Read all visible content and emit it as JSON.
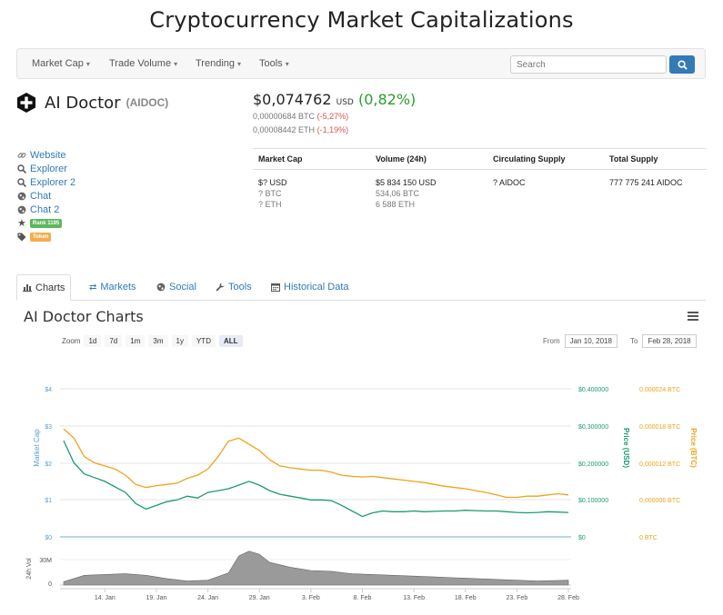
{
  "page": {
    "title": "Cryptocurrency Market Capitalizations"
  },
  "nav": {
    "items": [
      "Market Cap",
      "Trade Volume",
      "Trending",
      "Tools"
    ],
    "search_placeholder": "Search"
  },
  "coin": {
    "name": "AI Doctor",
    "symbol": "(AIDOC)",
    "price_usd": "$0,074762",
    "usd_label": "USD",
    "change_usd": "(0,82%)",
    "price_btc": "0,00000684 BTC",
    "change_btc": "(-5,27%)",
    "price_eth": "0,00008442 ETH",
    "change_eth": "(-1,19%)"
  },
  "links": {
    "website": "Website",
    "explorer": "Explorer",
    "explorer2": "Explorer 2",
    "chat": "Chat",
    "chat2": "Chat 2",
    "rank": "Rank 1195",
    "token": "Token"
  },
  "stats": {
    "headers": [
      "Market Cap",
      "Volume (24h)",
      "Circulating Supply",
      "Total Supply"
    ],
    "market_cap": [
      "$? USD",
      "? BTC",
      "? ETH"
    ],
    "volume": [
      "$5 834 150 USD",
      "534,06 BTC",
      "6 588 ETH"
    ],
    "circulating": "? AIDOC",
    "total": "777 775 241 AIDOC"
  },
  "tabs": [
    "Charts",
    "Markets",
    "Social",
    "Tools",
    "Historical Data"
  ],
  "charts": {
    "title": "AI Doctor Charts",
    "zoom_label": "Zoom",
    "zoom_buttons": [
      "1d",
      "7d",
      "1m",
      "3m",
      "1y",
      "YTD",
      "ALL"
    ],
    "from_label": "From",
    "from_date": "Jan 10, 2018",
    "to_label": "To",
    "to_date": "Feb 28, 2018"
  },
  "chart_data": {
    "type": "line",
    "x_ticks": [
      "14. Jan",
      "19. Jan",
      "24. Jan",
      "29. Jan",
      "3. Feb",
      "8. Feb",
      "13. Feb",
      "18. Feb",
      "23. Feb",
      "28. Feb"
    ],
    "left_axis": {
      "label": "Market Cap",
      "ticks": [
        "$4",
        "$3",
        "$2",
        "$1",
        "$0"
      ]
    },
    "usd_axis": {
      "label": "Price (USD)",
      "ticks": [
        "$0,400000",
        "$0,300000",
        "$0,200000",
        "$0,100000",
        "$0"
      ],
      "ylim": [
        0,
        0.4
      ]
    },
    "btc_axis": {
      "label": "Price (BTC)",
      "ticks": [
        "0,000024 BTC",
        "0,000018 BTC",
        "0,000012 BTC",
        "0,000006 BTC",
        "0 BTC"
      ],
      "ylim": [
        0,
        2.4e-05
      ]
    },
    "volume_axis": {
      "label": "24h Vol",
      "ticks": [
        "30M",
        "0"
      ]
    },
    "series": [
      {
        "name": "Price (USD)",
        "color": "#1a9a73",
        "x": [
          "Jan 10",
          "Jan 11",
          "Jan 12",
          "Jan 13",
          "Jan 14",
          "Jan 15",
          "Jan 16",
          "Jan 17",
          "Jan 18",
          "Jan 19",
          "Jan 20",
          "Jan 21",
          "Jan 22",
          "Jan 23",
          "Jan 24",
          "Jan 25",
          "Jan 26",
          "Jan 27",
          "Jan 28",
          "Jan 29",
          "Jan 30",
          "Jan 31",
          "Feb 1",
          "Feb 2",
          "Feb 3",
          "Feb 4",
          "Feb 5",
          "Feb 6",
          "Feb 7",
          "Feb 8",
          "Feb 9",
          "Feb 10",
          "Feb 11",
          "Feb 12",
          "Feb 13",
          "Feb 14",
          "Feb 15",
          "Feb 16",
          "Feb 17",
          "Feb 18",
          "Feb 19",
          "Feb 20",
          "Feb 21",
          "Feb 22",
          "Feb 23",
          "Feb 24",
          "Feb 25",
          "Feb 26",
          "Feb 27",
          "Feb 28"
        ],
        "values": [
          0.26,
          0.2,
          0.17,
          0.16,
          0.15,
          0.135,
          0.12,
          0.09,
          0.075,
          0.085,
          0.095,
          0.1,
          0.11,
          0.105,
          0.12,
          0.125,
          0.13,
          0.14,
          0.15,
          0.14,
          0.125,
          0.115,
          0.11,
          0.105,
          0.1,
          0.1,
          0.098,
          0.085,
          0.07,
          0.055,
          0.065,
          0.07,
          0.068,
          0.068,
          0.07,
          0.068,
          0.069,
          0.07,
          0.07,
          0.072,
          0.071,
          0.07,
          0.07,
          0.068,
          0.066,
          0.065,
          0.066,
          0.068,
          0.067,
          0.066
        ]
      },
      {
        "name": "Price (BTC)",
        "color": "#f0a318",
        "x": [
          "Jan 10",
          "Jan 11",
          "Jan 12",
          "Jan 13",
          "Jan 14",
          "Jan 15",
          "Jan 16",
          "Jan 17",
          "Jan 18",
          "Jan 19",
          "Jan 20",
          "Jan 21",
          "Jan 22",
          "Jan 23",
          "Jan 24",
          "Jan 25",
          "Jan 26",
          "Jan 27",
          "Jan 28",
          "Jan 29",
          "Jan 30",
          "Jan 31",
          "Feb 1",
          "Feb 2",
          "Feb 3",
          "Feb 4",
          "Feb 5",
          "Feb 6",
          "Feb 7",
          "Feb 8",
          "Feb 9",
          "Feb 10",
          "Feb 11",
          "Feb 12",
          "Feb 13",
          "Feb 14",
          "Feb 15",
          "Feb 16",
          "Feb 17",
          "Feb 18",
          "Feb 19",
          "Feb 20",
          "Feb 21",
          "Feb 22",
          "Feb 23",
          "Feb 24",
          "Feb 25",
          "Feb 26",
          "Feb 27",
          "Feb 28"
        ],
        "values": [
          1.75e-05,
          1.6e-05,
          1.3e-05,
          1.2e-05,
          1.15e-05,
          1.1e-05,
          1e-05,
          8.5e-06,
          8e-06,
          8.3e-06,
          8.5e-06,
          8.7e-06,
          9.5e-06,
          1e-05,
          1.1e-05,
          1.3e-05,
          1.55e-05,
          1.6e-05,
          1.5e-05,
          1.4e-05,
          1.25e-05,
          1.15e-05,
          1.12e-05,
          1.1e-05,
          1.08e-05,
          1.08e-05,
          1.05e-05,
          1e-05,
          9.8e-06,
          9.7e-06,
          9.8e-06,
          9.6e-06,
          9.4e-06,
          9.2e-06,
          9e-06,
          8.8e-06,
          8.5e-06,
          8.2e-06,
          8e-06,
          7.8e-06,
          7.5e-06,
          7.2e-06,
          6.8e-06,
          6.4e-06,
          6.4e-06,
          6.6e-06,
          6.6e-06,
          6.8e-06,
          7e-06,
          6.8e-06
        ]
      },
      {
        "name": "24h Vol",
        "color": "#888888",
        "x": [
          "Jan 10",
          "Jan 12",
          "Jan 14",
          "Jan 16",
          "Jan 18",
          "Jan 20",
          "Jan 22",
          "Jan 24",
          "Jan 26",
          "Jan 27",
          "Jan 28",
          "Jan 29",
          "Jan 30",
          "Feb 1",
          "Feb 3",
          "Feb 5",
          "Feb 7",
          "Feb 9",
          "Feb 11",
          "Feb 13",
          "Feb 15",
          "Feb 17",
          "Feb 19",
          "Feb 21",
          "Feb 23",
          "Feb 25",
          "Feb 28"
        ],
        "values": [
          4,
          12,
          13,
          14,
          12,
          8,
          5,
          6,
          15,
          36,
          42,
          38,
          28,
          22,
          18,
          17,
          14,
          13,
          12,
          11,
          10,
          9,
          8,
          7,
          6,
          5,
          6
        ]
      }
    ]
  }
}
